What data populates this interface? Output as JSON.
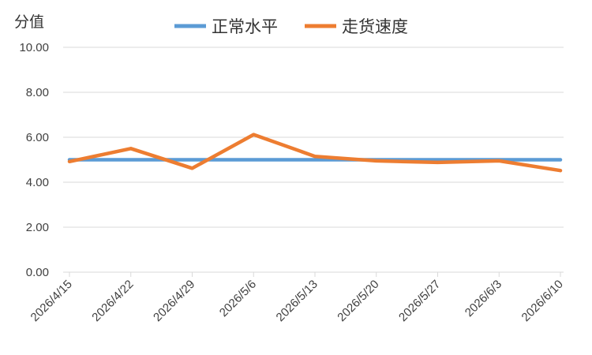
{
  "chart_data": {
    "type": "line",
    "title": "",
    "ylabel": "分值",
    "xlabel": "",
    "categories": [
      "2026/4/15",
      "2026/4/22",
      "2026/4/29",
      "2026/5/6",
      "2026/5/13",
      "2026/5/20",
      "2026/5/27",
      "2026/6/3",
      "2026/6/10"
    ],
    "y_ticks": [
      "0.00",
      "2.00",
      "4.00",
      "6.00",
      "8.00",
      "10.00"
    ],
    "ylim": [
      0,
      10
    ],
    "grid": "horizontal",
    "legend_position": "top",
    "series": [
      {
        "name": "正常水平",
        "color": "#5B9BD5",
        "values": [
          5,
          5,
          5,
          5,
          5,
          5,
          5,
          5,
          5
        ]
      },
      {
        "name": "走货速度",
        "color": "#ED7D31",
        "values": [
          4.92,
          5.5,
          4.62,
          6.12,
          5.15,
          4.95,
          4.88,
          4.95,
          4.52
        ]
      }
    ]
  }
}
